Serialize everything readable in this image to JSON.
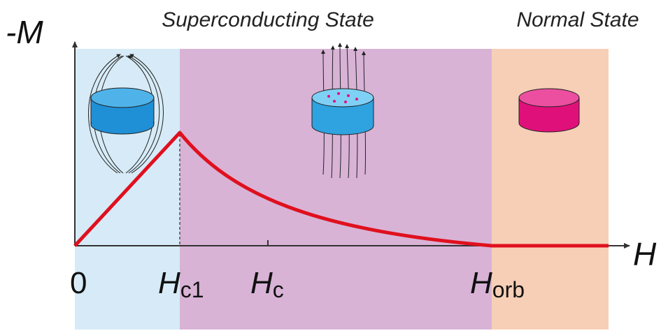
{
  "axes": {
    "y_label": "-M",
    "x_label": "H"
  },
  "regions": [
    {
      "label": "Superconducting State"
    },
    {
      "label": "Normal State"
    }
  ],
  "x_marks": [
    {
      "main": "0"
    },
    {
      "main": "H",
      "sub": "c1"
    },
    {
      "main": "H",
      "sub": "c"
    },
    {
      "main": "H",
      "sub": "orb"
    }
  ]
}
